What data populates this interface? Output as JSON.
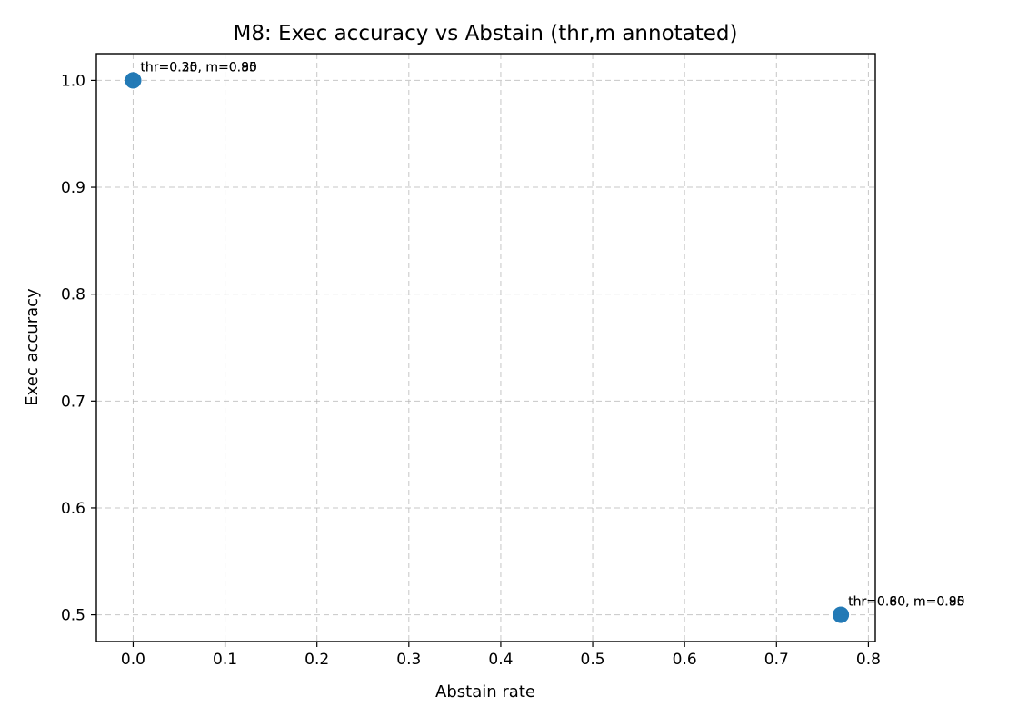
{
  "chart_data": {
    "type": "scatter",
    "title": "M8: Exec accuracy vs Abstain (thr,m annotated)",
    "xlabel": "Abstain rate",
    "ylabel": "Exec accuracy",
    "xlim": [
      -0.04,
      0.8075
    ],
    "ylim": [
      0.475,
      1.025
    ],
    "xticks": [
      0.0,
      0.1,
      0.2,
      0.3,
      0.4,
      0.5,
      0.6,
      0.7,
      0.8
    ],
    "xtick_labels": [
      "0.0",
      "0.1",
      "0.2",
      "0.3",
      "0.4",
      "0.5",
      "0.6",
      "0.7",
      "0.8"
    ],
    "yticks": [
      0.5,
      0.6,
      0.7,
      0.8,
      0.9,
      1.0
    ],
    "ytick_labels": [
      "0.5",
      "0.6",
      "0.7",
      "0.8",
      "0.9",
      "1.0"
    ],
    "grid": true,
    "marker_color": "#1f77b4",
    "points": [
      {
        "x": 0.0,
        "y": 1.0,
        "label": "thr=0.20, m=0.95"
      },
      {
        "x": 0.0,
        "y": 1.0,
        "label": "thr=0.35, m=0.80"
      },
      {
        "x": 0.77,
        "y": 0.5,
        "label": "thr=0.60, m=0.85"
      },
      {
        "x": 0.77,
        "y": 0.5,
        "label": "thr=0.80, m=0.90"
      }
    ]
  }
}
